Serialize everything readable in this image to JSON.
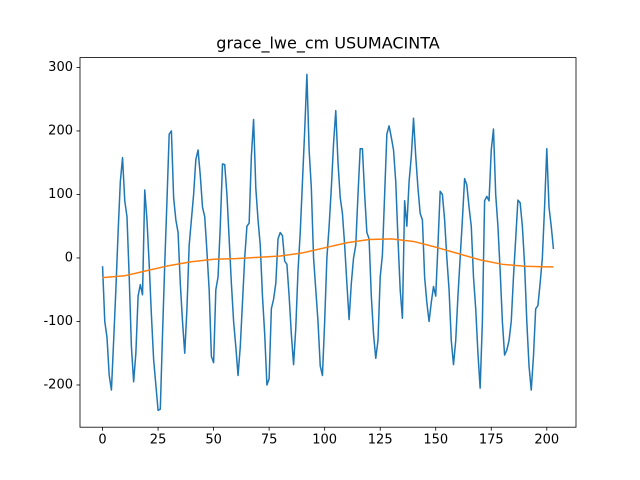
{
  "chart_data": {
    "type": "line",
    "title": "grace_lwe_cm USUMACINTA",
    "xlim": [
      -10.15,
      213.15
    ],
    "xticks": [
      0,
      25,
      50,
      75,
      100,
      125,
      150,
      175,
      200
    ],
    "ylim": [
      -266.5,
      315.5
    ],
    "yticks": [
      -200,
      -100,
      0,
      100,
      200,
      300
    ],
    "series": [
      {
        "color": "#1f77b4",
        "x": [
          0,
          1,
          2,
          3,
          4,
          5,
          6,
          7,
          8,
          9,
          10,
          11,
          12,
          13,
          14,
          15,
          16,
          17,
          18,
          19,
          20,
          21,
          22,
          23,
          24,
          25,
          26,
          27,
          28,
          29,
          30,
          31,
          32,
          33,
          34,
          35,
          36,
          37,
          38,
          39,
          40,
          41,
          42,
          43,
          44,
          45,
          46,
          47,
          48,
          49,
          50,
          51,
          52,
          53,
          54,
          55,
          56,
          57,
          58,
          59,
          60,
          61,
          62,
          63,
          64,
          65,
          66,
          67,
          68,
          69,
          70,
          71,
          72,
          73,
          74,
          75,
          76,
          77,
          78,
          79,
          80,
          81,
          82,
          83,
          84,
          85,
          86,
          87,
          88,
          89,
          90,
          91,
          92,
          93,
          94,
          95,
          96,
          97,
          98,
          99,
          100,
          101,
          102,
          103,
          104,
          105,
          106,
          107,
          108,
          109,
          110,
          111,
          112,
          113,
          114,
          115,
          116,
          117,
          118,
          119,
          120,
          121,
          122,
          123,
          124,
          125,
          126,
          127,
          128,
          129,
          130,
          131,
          132,
          133,
          134,
          135,
          136,
          137,
          138,
          139,
          140,
          141,
          142,
          143,
          144,
          145,
          146,
          147,
          148,
          149,
          150,
          151,
          152,
          153,
          154,
          155,
          156,
          157,
          158,
          159,
          160,
          161,
          162,
          163,
          164,
          165,
          166,
          167,
          168,
          169,
          170,
          171,
          172,
          173,
          174,
          175,
          176,
          177,
          178,
          179,
          180,
          181,
          182,
          183,
          184,
          185,
          186,
          187,
          188,
          189,
          190,
          191,
          192,
          193,
          194,
          195,
          196,
          197,
          198,
          199,
          200,
          201,
          202,
          203
        ],
        "values": [
          -13,
          -100,
          -125,
          -185,
          -208,
          -130,
          -50,
          40,
          120,
          158,
          90,
          65,
          -30,
          -140,
          -195,
          -150,
          -60,
          -42,
          -58,
          107,
          60,
          -10,
          -90,
          -160,
          -200,
          -240,
          -238,
          -120,
          -10,
          90,
          195,
          200,
          95,
          60,
          40,
          -40,
          -100,
          -150,
          -80,
          20,
          60,
          100,
          155,
          170,
          130,
          80,
          65,
          10,
          -50,
          -155,
          -165,
          -50,
          -30,
          50,
          148,
          147,
          100,
          30,
          -40,
          -100,
          -140,
          -185,
          -140,
          -70,
          0,
          50,
          55,
          160,
          218,
          110,
          60,
          20,
          -60,
          -120,
          -200,
          -190,
          -80,
          -65,
          -40,
          30,
          40,
          35,
          -5,
          -10,
          -60,
          -120,
          -168,
          -110,
          -20,
          40,
          120,
          200,
          289,
          170,
          110,
          0,
          -50,
          -100,
          -170,
          -185,
          -100,
          0,
          50,
          110,
          180,
          232,
          150,
          95,
          70,
          20,
          -40,
          -97,
          -40,
          0,
          20,
          100,
          172,
          172,
          100,
          40,
          30,
          -60,
          -120,
          -158,
          -130,
          -30,
          5,
          100,
          195,
          208,
          190,
          170,
          120,
          30,
          -50,
          -95,
          90,
          50,
          120,
          160,
          220,
          160,
          110,
          70,
          60,
          -30,
          -70,
          -100,
          -70,
          -45,
          -60,
          20,
          105,
          100,
          60,
          0,
          -50,
          -130,
          -168,
          -130,
          -60,
          0,
          60,
          125,
          115,
          80,
          50,
          -30,
          -80,
          -150,
          -205,
          -100,
          90,
          97,
          90,
          170,
          203,
          100,
          50,
          -20,
          -100,
          -153,
          -145,
          -130,
          -100,
          -30,
          30,
          91,
          87,
          50,
          -10,
          -100,
          -170,
          -208,
          -155,
          -80,
          -75,
          -40,
          0,
          80,
          172,
          80,
          50,
          14
        ]
      },
      {
        "color": "#ff7f0e",
        "x": [
          0,
          10,
          20,
          30,
          40,
          50,
          60,
          70,
          80,
          90,
          100,
          110,
          120,
          130,
          140,
          150,
          160,
          170,
          180,
          190,
          200,
          203
        ],
        "values": [
          -31,
          -28,
          -20,
          -12,
          -6,
          -2,
          -1,
          1,
          3,
          8,
          16,
          24,
          29,
          30,
          26,
          17,
          7,
          -3,
          -10,
          -13,
          -14,
          -14
        ]
      }
    ]
  }
}
